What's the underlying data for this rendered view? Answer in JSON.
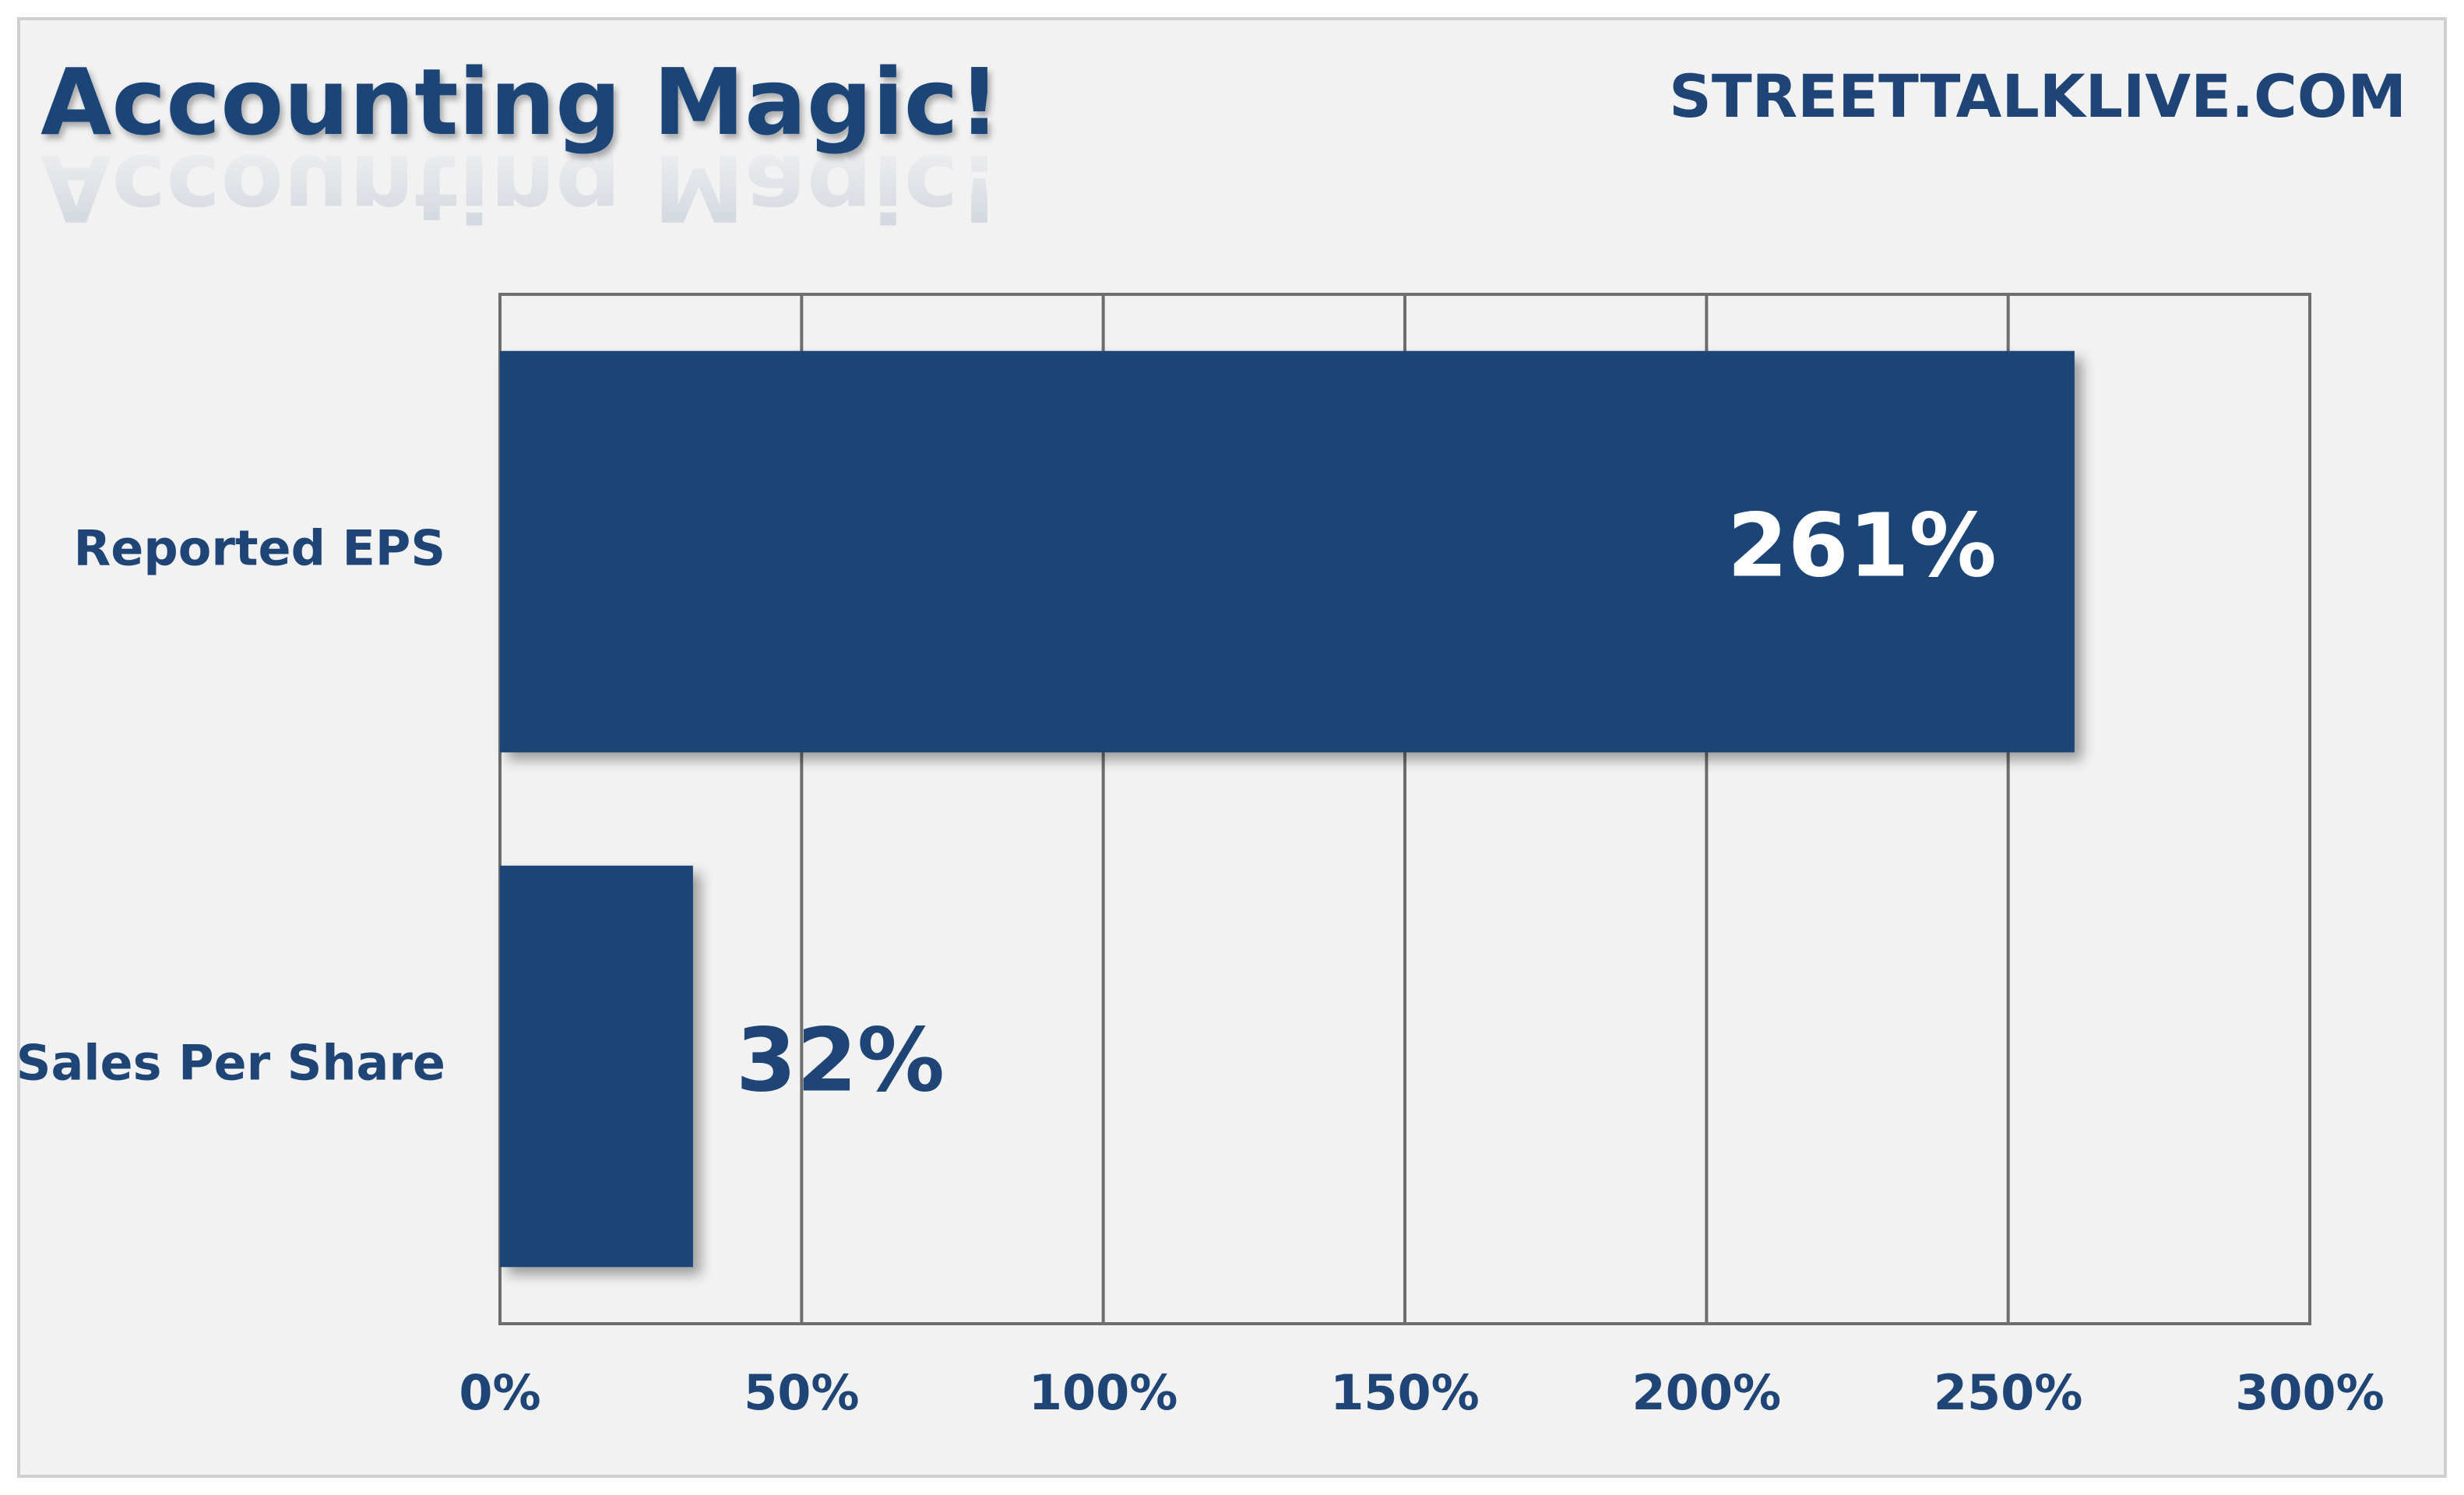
{
  "colors": {
    "bar": "#1f4577",
    "text": "#1f4577",
    "background": "#f2f2f2",
    "gridline": "#6e6e6e",
    "data_label_inside": "#ffffff"
  },
  "chart_data": {
    "type": "bar",
    "orientation": "horizontal",
    "title": "Accounting Magic!",
    "source": "STREETTALKLIVE.COM",
    "categories": [
      "Reported EPS",
      "Sales Per Share"
    ],
    "values": [
      261,
      32
    ],
    "data_labels": [
      "261%",
      "32%"
    ],
    "xlim": [
      0,
      300
    ],
    "x_ticks": [
      0,
      50,
      100,
      150,
      200,
      250,
      300
    ],
    "x_tick_labels": [
      "0%",
      "50%",
      "100%",
      "150%",
      "200%",
      "250%",
      "300%"
    ],
    "grid": true,
    "legend": "none"
  }
}
